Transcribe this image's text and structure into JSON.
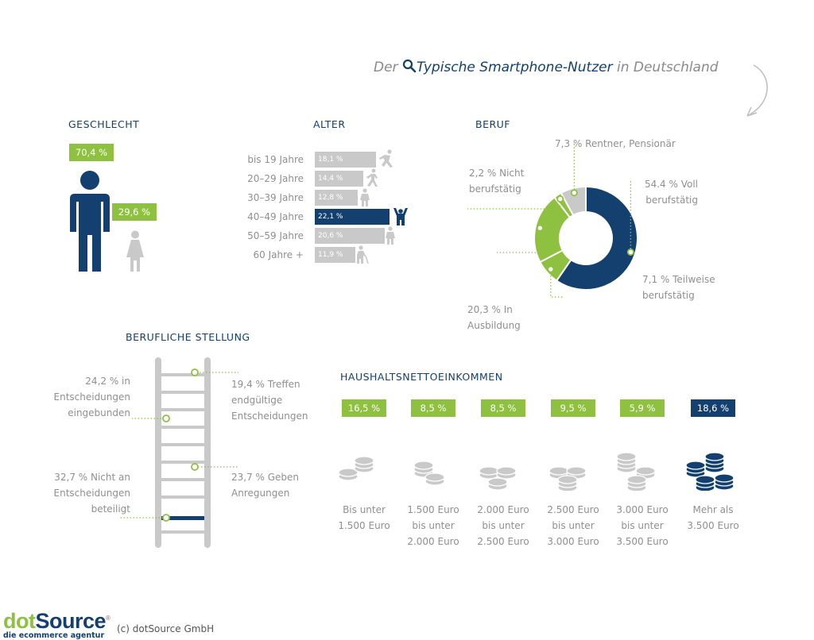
{
  "title": {
    "prefix": "Der",
    "main": "Typische Smartphone-Nutzer",
    "suffix": "in Deutschland"
  },
  "colors": {
    "navy": "#13406e",
    "green": "#8ec13f",
    "grey": "#c9c9c9"
  },
  "sections": {
    "geschlecht": "GESCHLECHT",
    "alter": "ALTER",
    "beruf": "BERUF",
    "stellung": "BERUFLICHE STELLUNG",
    "einkommen": "HAUSHALTSNETTOEINKOMMEN"
  },
  "chart_data": [
    {
      "type": "bar",
      "id": "geschlecht",
      "categories": [
        "male",
        "female"
      ],
      "values": [
        70.4,
        29.6
      ],
      "value_labels": [
        "70,4 %",
        "29,6 %"
      ]
    },
    {
      "type": "bar",
      "id": "alter",
      "orientation": "horizontal",
      "categories": [
        "bis 19 Jahre",
        "20–29 Jahre",
        "30–39 Jahre",
        "40–49 Jahre",
        "50–59 Jahre",
        "60 Jahre +"
      ],
      "values": [
        18.1,
        14.4,
        12.8,
        22.1,
        20.6,
        11.9
      ],
      "value_labels": [
        "18,1 %",
        "14,4 %",
        "12,8 %",
        "22,1 %",
        "20,6 %",
        "11,9 %"
      ],
      "highlight_index": 3
    },
    {
      "type": "pie",
      "id": "beruf",
      "donut": true,
      "labels": [
        "Voll berufstätig",
        "Teilweise berufstätig",
        "In Ausbildung",
        "Nicht berufstätig",
        "Rentner, Pensionär"
      ],
      "values": [
        54.4,
        7.1,
        20.3,
        2.2,
        7.3
      ],
      "annotations": [
        [
          "54.4 % Voll",
          "berufstätig"
        ],
        [
          "7,1 % Teilweise",
          "berufstätig"
        ],
        [
          "20,3 % In",
          "Ausbildung"
        ],
        [
          "2,2 % Nicht",
          "berufstätig"
        ],
        [
          "7,3 % Rentner, Pensionär"
        ]
      ],
      "slice_colors": [
        "#13406e",
        "#8ec13f",
        "#8ec13f",
        "#8ec13f",
        "#c9c9c9"
      ]
    },
    {
      "type": "other",
      "id": "stellung",
      "labels": [
        "Treffen endgültige Entscheidungen",
        "In Entscheidungen eingebunden",
        "Geben Anregungen",
        "Nicht an Entscheidungen beteiligt"
      ],
      "values": [
        19.4,
        24.2,
        23.7,
        32.7
      ],
      "annotations": [
        [
          "19,4 % Treffen",
          "endgültige",
          "Entscheidungen"
        ],
        [
          "24,2 % in",
          "Entscheidungen",
          "eingebunden"
        ],
        [
          "23,7 % Geben",
          "Anregungen"
        ],
        [
          "32,7 % Nicht an",
          "Entscheidungen",
          "beteiligt"
        ]
      ]
    },
    {
      "type": "bar",
      "id": "einkommen",
      "categories": [
        [
          "Bis unter",
          "1.500 Euro"
        ],
        [
          "1.500 Euro",
          "bis unter",
          "2.000 Euro"
        ],
        [
          "2.000 Euro",
          "bis unter",
          "2.500 Euro"
        ],
        [
          "2.500 Euro",
          "bis unter",
          "3.000 Euro"
        ],
        [
          "3.000 Euro",
          "bis unter",
          "3.500 Euro"
        ],
        [
          "Mehr als",
          "3.500 Euro"
        ]
      ],
      "values": [
        16.5,
        8.5,
        8.5,
        9.5,
        5.9,
        18.6
      ],
      "value_labels": [
        "16,5 %",
        "8,5 %",
        "8,5 %",
        "9,5 %",
        "5,9 %",
        "18,6 %"
      ],
      "highlight_index": 5
    }
  ],
  "footer": {
    "logo_main": "dotSource",
    "logo_sub": "die ecommerce agentur",
    "copyright": "(c) dotSource GmbH"
  }
}
